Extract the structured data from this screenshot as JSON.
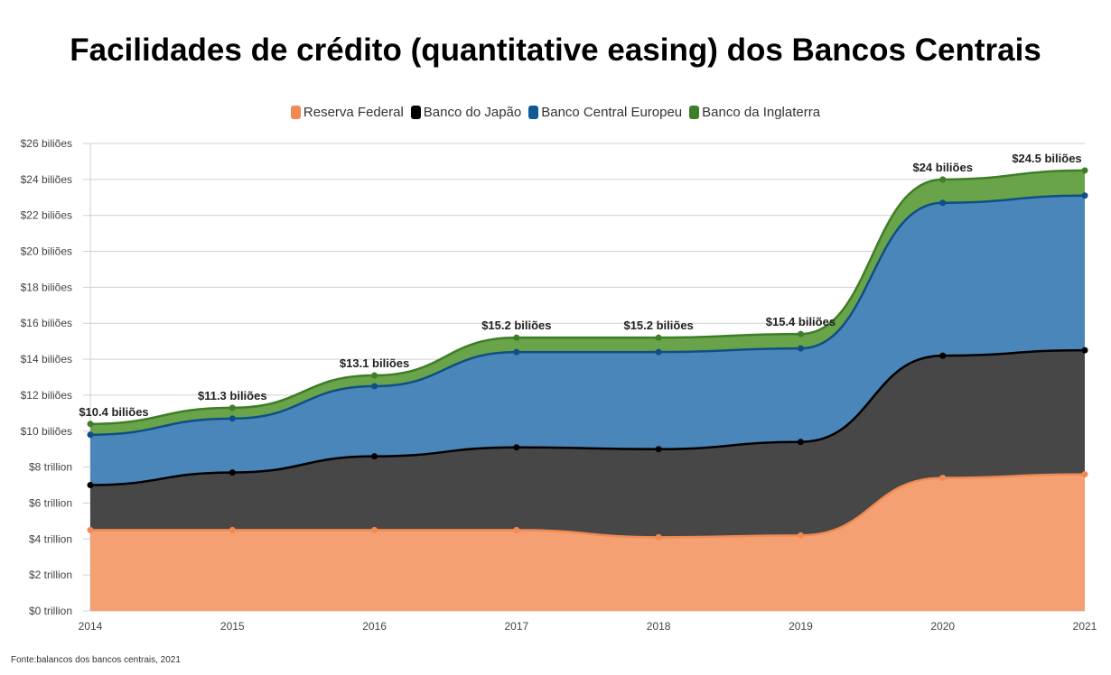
{
  "chart_data": {
    "type": "area",
    "stacked": true,
    "title": "Facilidades de crédito (quantitative easing) dos Bancos Centrais",
    "xlabel": "",
    "ylabel": "",
    "x": [
      "2014",
      "2015",
      "2016",
      "2017",
      "2018",
      "2019",
      "2020",
      "2021"
    ],
    "ylim": [
      0,
      26
    ],
    "yticks": [
      0,
      2,
      4,
      6,
      8,
      10,
      12,
      14,
      16,
      18,
      20,
      22,
      24,
      26
    ],
    "ytick_labels": [
      "$0 trillion",
      "$2 trillion",
      "$4 trillion",
      "$6 trillion",
      "$8 trillion",
      "$10 biliões",
      "$12 biliões",
      "$14 biliões",
      "$16 biliões",
      "$18 biliões",
      "$20 biliões",
      "$22 biliões",
      "$24 biliões",
      "$26 biliões"
    ],
    "grid": true,
    "legend_position": "top-center",
    "series": [
      {
        "name": "Reserva Federal",
        "color": "#f4a072",
        "line": "#f08a55",
        "values": [
          4.5,
          4.5,
          4.5,
          4.5,
          4.1,
          4.2,
          7.4,
          7.6
        ]
      },
      {
        "name": "Banco do Japão",
        "color": "#474747",
        "line": "#000000",
        "values": [
          2.5,
          3.2,
          4.1,
          4.6,
          4.9,
          5.2,
          6.8,
          6.9
        ]
      },
      {
        "name": "Banco Central Europeu",
        "color": "#4a86ba",
        "line": "#0f4f86",
        "values": [
          2.8,
          3.0,
          3.9,
          5.3,
          5.4,
          5.2,
          8.5,
          8.6
        ]
      },
      {
        "name": "Banco da Inglaterra",
        "color": "#69a34a",
        "line": "#3e7e26",
        "values": [
          0.6,
          0.6,
          0.6,
          0.8,
          0.8,
          0.8,
          1.3,
          1.4
        ]
      }
    ],
    "total_labels": [
      "$10.4 biliões",
      "$11.3 biliões",
      "$13.1 biliões",
      "$15.2 biliões",
      "$15.2 biliões",
      "$15.4 biliões",
      "$24 biliões",
      "$24.5 biliões"
    ],
    "source": "Fonte:balancos dos bancos centrais, 2021"
  }
}
